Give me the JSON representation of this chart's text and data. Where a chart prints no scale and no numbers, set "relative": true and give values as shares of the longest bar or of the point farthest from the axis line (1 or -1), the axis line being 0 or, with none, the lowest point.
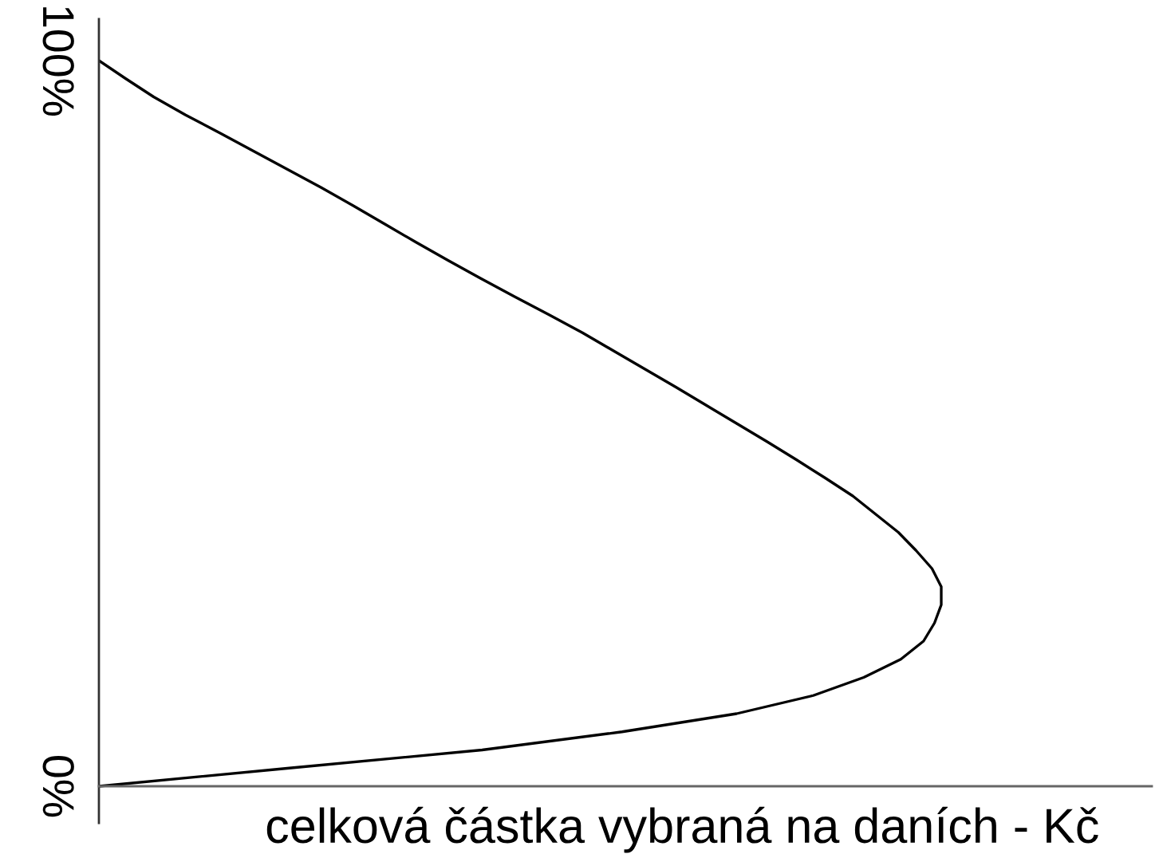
{
  "chart_data": {
    "type": "line",
    "orientation": "horizontal",
    "relative": true,
    "tick_labels": "y",
    "xlabel": "celková částka vybraná na daních - Kč",
    "categories": [
      "100%",
      null,
      null,
      null,
      null,
      null,
      null,
      null,
      null,
      null,
      null,
      null,
      null,
      null,
      null,
      null,
      null,
      null,
      null,
      null,
      null,
      null,
      null,
      null,
      null,
      null,
      null,
      null,
      null,
      null,
      null,
      null,
      null,
      null,
      null,
      null,
      null,
      null,
      null,
      null,
      "0%"
    ],
    "series": [
      {
        "color": "#000000",
        "values": [
          0,
          0.032,
          0.065,
          0.103,
          0.144,
          0.184,
          0.224,
          0.264,
          0.302,
          0.339,
          0.376,
          0.414,
          0.453,
          0.493,
          0.534,
          0.574,
          0.611,
          0.648,
          0.685,
          0.721,
          0.757,
          0.793,
          0.828,
          0.862,
          0.895,
          0.922,
          0.949,
          0.97,
          0.989,
          1,
          1,
          0.992,
          0.979,
          0.952,
          0.908,
          0.848,
          0.757,
          0.621,
          0.455,
          0.226,
          0
        ]
      }
    ]
  }
}
